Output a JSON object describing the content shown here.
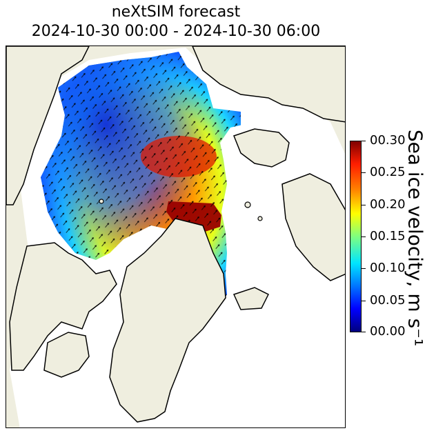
{
  "title": {
    "line1": "neXtSIM forecast",
    "line2": "2024-10-30 00:00 - 2024-10-30 06:00"
  },
  "colorbar": {
    "label": "Sea ice velocity, m s⁻¹",
    "ticks": [
      "00.00",
      "00.05",
      "00.10",
      "00.15",
      "00.20",
      "00.25",
      "00.30"
    ],
    "min": 0.0,
    "max": 0.3,
    "colormap": "jet"
  },
  "colors": {
    "land": "#efeedf",
    "open_water": "#ffffff",
    "coastline": "#000000",
    "vectors": "#000000"
  }
}
